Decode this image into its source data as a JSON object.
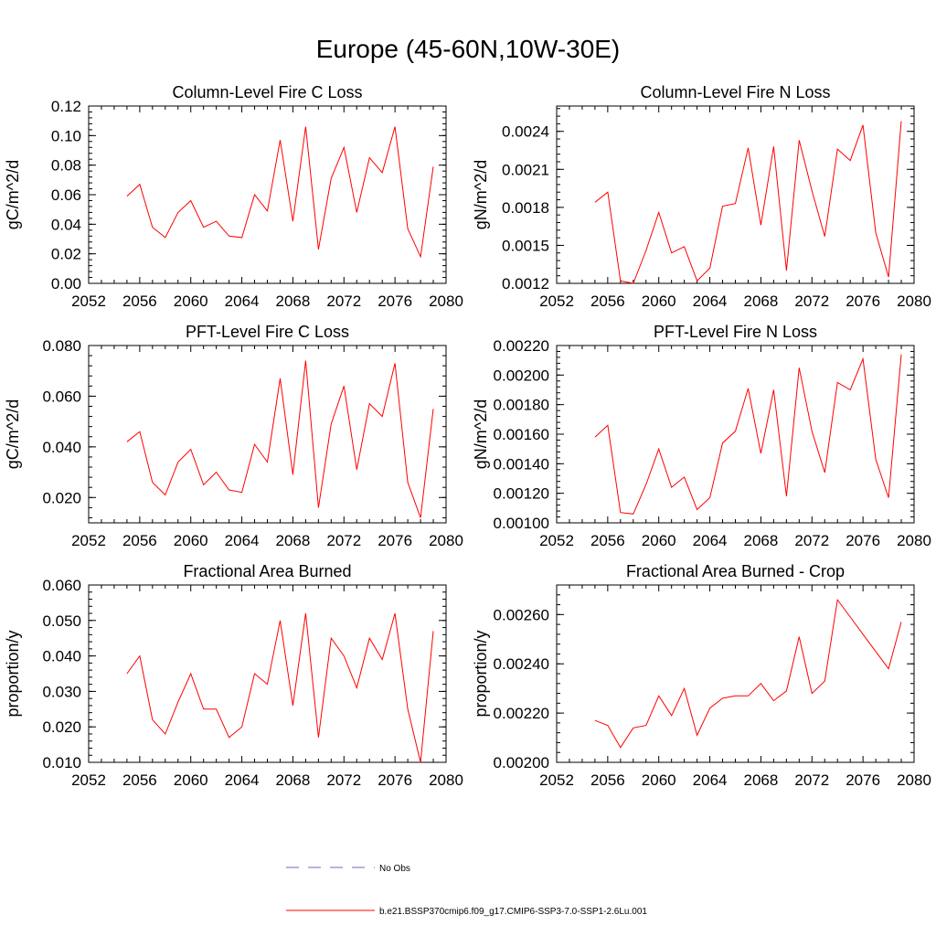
{
  "figure": {
    "title": "Europe (45-60N,10W-30E)"
  },
  "colors": {
    "model": "#ff0000",
    "obs": "#6a6acd",
    "axis": "#000000"
  },
  "legend": {
    "obs_label": "No Obs",
    "model_label": "b.e21.BSSP370cmip6.f09_g17.CMIP6-SSP3-7.0-SSP1-2.6Lu.001"
  },
  "chart_data": [
    {
      "type": "line",
      "title": "Column-Level Fire C Loss",
      "ylabel": "gC/m^2/d",
      "xlim": [
        2052,
        2080
      ],
      "ylim": [
        0,
        0.12
      ],
      "x_ticks": [
        "2052",
        "2056",
        "2060",
        "2064",
        "2068",
        "2072",
        "2076",
        "2080"
      ],
      "y_ticks": [
        "0.00",
        "0.02",
        "0.04",
        "0.06",
        "0.08",
        "0.10",
        "0.12"
      ],
      "x": [
        2055,
        2056,
        2057,
        2058,
        2059,
        2060,
        2061,
        2062,
        2063,
        2064,
        2065,
        2066,
        2067,
        2068,
        2069,
        2070,
        2071,
        2072,
        2073,
        2074,
        2075,
        2076,
        2077,
        2078,
        2079
      ],
      "series": [
        {
          "values": [
            0.059,
            0.067,
            0.038,
            0.031,
            0.048,
            0.056,
            0.038,
            0.042,
            0.032,
            0.031,
            0.06,
            0.049,
            0.097,
            0.042,
            0.106,
            0.023,
            0.071,
            0.092,
            0.048,
            0.085,
            0.075,
            0.106,
            0.037,
            0.018,
            0.079
          ]
        }
      ]
    },
    {
      "type": "line",
      "title": "Column-Level Fire N Loss",
      "ylabel": "gN/m^2/d",
      "xlim": [
        2052,
        2080
      ],
      "ylim": [
        0.0012,
        0.0026
      ],
      "x_ticks": [
        "2052",
        "2056",
        "2060",
        "2064",
        "2068",
        "2072",
        "2076",
        "2080"
      ],
      "y_ticks": [
        "0.0012",
        "0.0015",
        "0.0018",
        "0.0021",
        "0.0024"
      ],
      "x": [
        2055,
        2056,
        2057,
        2058,
        2059,
        2060,
        2061,
        2062,
        2063,
        2064,
        2065,
        2066,
        2067,
        2068,
        2069,
        2070,
        2071,
        2072,
        2073,
        2074,
        2075,
        2076,
        2077,
        2078,
        2079
      ],
      "series": [
        {
          "values": [
            0.00184,
            0.00192,
            0.00122,
            0.0012,
            0.00146,
            0.00176,
            0.00144,
            0.00149,
            0.00122,
            0.00132,
            0.00181,
            0.00183,
            0.00227,
            0.00166,
            0.00228,
            0.0013,
            0.00233,
            0.00193,
            0.00157,
            0.00226,
            0.00217,
            0.00245,
            0.0016,
            0.00125,
            0.00248
          ]
        }
      ]
    },
    {
      "type": "line",
      "title": "PFT-Level Fire C Loss",
      "ylabel": "gC/m^2/d",
      "xlim": [
        2052,
        2080
      ],
      "ylim": [
        0.01,
        0.08
      ],
      "x_ticks": [
        "2052",
        "2056",
        "2060",
        "2064",
        "2068",
        "2072",
        "2076",
        "2080"
      ],
      "y_ticks": [
        "0.020",
        "0.040",
        "0.060",
        "0.080"
      ],
      "x": [
        2055,
        2056,
        2057,
        2058,
        2059,
        2060,
        2061,
        2062,
        2063,
        2064,
        2065,
        2066,
        2067,
        2068,
        2069,
        2070,
        2071,
        2072,
        2073,
        2074,
        2075,
        2076,
        2077,
        2078,
        2079
      ],
      "series": [
        {
          "values": [
            0.042,
            0.046,
            0.026,
            0.021,
            0.034,
            0.039,
            0.025,
            0.03,
            0.023,
            0.022,
            0.041,
            0.034,
            0.067,
            0.029,
            0.074,
            0.016,
            0.049,
            0.064,
            0.031,
            0.057,
            0.052,
            0.073,
            0.026,
            0.012,
            0.055
          ]
        }
      ]
    },
    {
      "type": "line",
      "title": "PFT-Level Fire N Loss",
      "ylabel": "gN/m^2/d",
      "xlim": [
        2052,
        2080
      ],
      "ylim": [
        0.001,
        0.0022
      ],
      "x_ticks": [
        "2052",
        "2056",
        "2060",
        "2064",
        "2068",
        "2072",
        "2076",
        "2080"
      ],
      "y_ticks": [
        "0.00100",
        "0.00120",
        "0.00140",
        "0.00160",
        "0.00180",
        "0.00200",
        "0.00220"
      ],
      "x": [
        2055,
        2056,
        2057,
        2058,
        2059,
        2060,
        2061,
        2062,
        2063,
        2064,
        2065,
        2066,
        2067,
        2068,
        2069,
        2070,
        2071,
        2072,
        2073,
        2074,
        2075,
        2076,
        2077,
        2078,
        2079
      ],
      "series": [
        {
          "values": [
            0.00158,
            0.00166,
            0.00107,
            0.00106,
            0.00126,
            0.0015,
            0.00124,
            0.00131,
            0.00109,
            0.00117,
            0.00154,
            0.00162,
            0.00191,
            0.00147,
            0.0019,
            0.00118,
            0.00205,
            0.00162,
            0.00134,
            0.00195,
            0.0019,
            0.00211,
            0.00143,
            0.00117,
            0.00214
          ]
        }
      ]
    },
    {
      "type": "line",
      "title": "Fractional Area Burned",
      "ylabel": "proportion/y",
      "xlim": [
        2052,
        2080
      ],
      "ylim": [
        0.01,
        0.06
      ],
      "x_ticks": [
        "2052",
        "2056",
        "2060",
        "2064",
        "2068",
        "2072",
        "2076",
        "2080"
      ],
      "y_ticks": [
        "0.010",
        "0.020",
        "0.030",
        "0.040",
        "0.050",
        "0.060"
      ],
      "x": [
        2055,
        2056,
        2057,
        2058,
        2059,
        2060,
        2061,
        2062,
        2063,
        2064,
        2065,
        2066,
        2067,
        2068,
        2069,
        2070,
        2071,
        2072,
        2073,
        2074,
        2075,
        2076,
        2077,
        2078,
        2079
      ],
      "series": [
        {
          "values": [
            0.035,
            0.04,
            0.022,
            0.018,
            0.027,
            0.035,
            0.025,
            0.025,
            0.017,
            0.02,
            0.035,
            0.032,
            0.05,
            0.026,
            0.052,
            0.017,
            0.045,
            0.04,
            0.031,
            0.045,
            0.039,
            0.052,
            0.025,
            0.01,
            0.047
          ]
        }
      ]
    },
    {
      "type": "line",
      "title": "Fractional Area Burned - Crop",
      "ylabel": "proportion/y",
      "xlim": [
        2052,
        2080
      ],
      "ylim": [
        0.002,
        0.00272
      ],
      "x_ticks": [
        "2052",
        "2056",
        "2060",
        "2064",
        "2068",
        "2072",
        "2076",
        "2080"
      ],
      "y_ticks": [
        "0.00200",
        "0.00220",
        "0.00240",
        "0.00260"
      ],
      "x": [
        2055,
        2056,
        2057,
        2058,
        2059,
        2060,
        2061,
        2062,
        2063,
        2064,
        2065,
        2066,
        2067,
        2068,
        2069,
        2070,
        2071,
        2072,
        2073,
        2074,
        2075,
        2076,
        2077,
        2078,
        2079
      ],
      "series": [
        {
          "values": [
            0.00217,
            0.00215,
            0.00206,
            0.00214,
            0.00215,
            0.00227,
            0.00219,
            0.0023,
            0.00211,
            0.00222,
            0.00226,
            0.00227,
            0.00227,
            0.00232,
            0.00225,
            0.00229,
            0.00251,
            0.00228,
            0.00233,
            0.00266,
            0.00259,
            0.00252,
            0.00245,
            0.00238,
            0.00257
          ]
        }
      ]
    }
  ]
}
